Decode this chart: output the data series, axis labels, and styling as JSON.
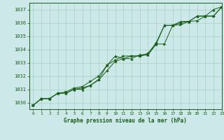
{
  "title": "Graphe pression niveau de la mer (hPa)",
  "bg_color": "#cce8e8",
  "grid_color": "#99ccbb",
  "line_color": "#1a5c1a",
  "marker_color": "#1a5c1a",
  "xlim": [
    -0.5,
    23
  ],
  "ylim": [
    1029.5,
    1037.5
  ],
  "yticks": [
    1030,
    1031,
    1032,
    1033,
    1034,
    1035,
    1036,
    1037
  ],
  "xticks": [
    0,
    1,
    2,
    3,
    4,
    5,
    6,
    7,
    8,
    9,
    10,
    11,
    12,
    13,
    14,
    15,
    16,
    17,
    18,
    19,
    20,
    21,
    22,
    23
  ],
  "series1_x": [
    0,
    1,
    2,
    3,
    4,
    5,
    6,
    7,
    8,
    9,
    10,
    11,
    12,
    13,
    14,
    15,
    16,
    17,
    18,
    19,
    20,
    21,
    22,
    23
  ],
  "series1_y": [
    1029.8,
    1030.3,
    1030.3,
    1030.7,
    1030.7,
    1031.0,
    1031.0,
    1031.3,
    1031.75,
    1032.8,
    1033.5,
    1033.3,
    1033.3,
    1033.6,
    1033.6,
    1034.4,
    1035.8,
    1035.8,
    1036.1,
    1036.1,
    1036.5,
    1036.5,
    1037.0,
    1037.2
  ],
  "series2_x": [
    0,
    1,
    2,
    3,
    4,
    5,
    6,
    7,
    8,
    9,
    10,
    11,
    12,
    13,
    14,
    15,
    16,
    17,
    18,
    19,
    20,
    21,
    22,
    23
  ],
  "series2_y": [
    1029.8,
    1030.3,
    1030.3,
    1030.7,
    1030.8,
    1031.1,
    1031.2,
    1031.6,
    1032.0,
    1032.8,
    1033.2,
    1033.5,
    1033.5,
    1033.5,
    1033.6,
    1034.4,
    1034.4,
    1035.8,
    1035.85,
    1036.1,
    1036.15,
    1036.5,
    1036.5,
    1037.2
  ],
  "series3_x": [
    0,
    1,
    2,
    3,
    4,
    5,
    6,
    7,
    8,
    9,
    10,
    11,
    12,
    13,
    14,
    15,
    16,
    17,
    18,
    19,
    20,
    21,
    22,
    23
  ],
  "series3_y": [
    1029.8,
    1030.3,
    1030.3,
    1030.7,
    1030.7,
    1031.0,
    1031.1,
    1031.3,
    1031.7,
    1032.4,
    1033.1,
    1033.3,
    1033.5,
    1033.5,
    1033.7,
    1034.5,
    1035.8,
    1035.8,
    1036.0,
    1036.1,
    1036.5,
    1036.5,
    1036.5,
    1037.2
  ]
}
